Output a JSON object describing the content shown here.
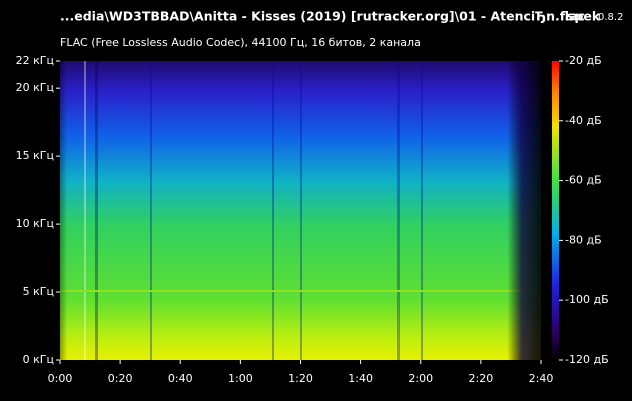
{
  "chart_data": {
    "type": "spectrogram",
    "title": "...edia\\WD3TBBAD\\Anitta - Kisses (2019) [rutracker.org]\\01 - AtenciЂn.flac",
    "app_name": "spek",
    "app_version": "0.8.2",
    "subtitle": "FLAC (Free Lossless Audio Codec), 44100 Гц, 16 битов, 2 канала",
    "xlim": [
      0,
      160
    ],
    "xticks": [
      {
        "value": 0,
        "label": "0:00"
      },
      {
        "value": 20,
        "label": "0:20"
      },
      {
        "value": 40,
        "label": "0:40"
      },
      {
        "value": 60,
        "label": "1:00"
      },
      {
        "value": 80,
        "label": "1:20"
      },
      {
        "value": 100,
        "label": "1:40"
      },
      {
        "value": 120,
        "label": "2:00"
      },
      {
        "value": 140,
        "label": "2:20"
      },
      {
        "value": 160,
        "label": "2:40"
      }
    ],
    "ylim": [
      0,
      22
    ],
    "yticks": [
      {
        "value": 0,
        "label": "0 кГц"
      },
      {
        "value": 5,
        "label": "5 кГц"
      },
      {
        "value": 10,
        "label": "10 кГц"
      },
      {
        "value": 15,
        "label": "15 кГц"
      },
      {
        "value": 20,
        "label": "20 кГц"
      },
      {
        "value": 22,
        "label": "22 кГц"
      }
    ],
    "zlim": [
      -120,
      -20
    ],
    "zticks": [
      {
        "value": -20,
        "label": "-20 дБ"
      },
      {
        "value": -40,
        "label": "-40 дБ"
      },
      {
        "value": -60,
        "label": "-60 дБ"
      },
      {
        "value": -80,
        "label": "-80 дБ"
      },
      {
        "value": -100,
        "label": "-100 дБ"
      },
      {
        "value": -120,
        "label": "-120 дБ"
      }
    ]
  }
}
